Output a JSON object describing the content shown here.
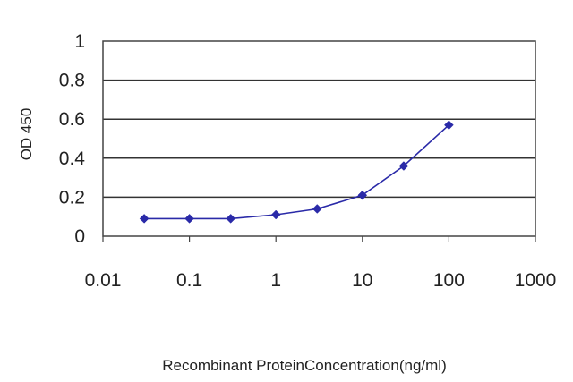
{
  "chart_data": {
    "type": "line",
    "title": "",
    "xlabel": "Recombinant ProteinConcentration(ng/ml)",
    "ylabel": "OD 450",
    "x_scale": "log",
    "xlim": [
      0.01,
      1000
    ],
    "ylim": [
      0,
      1
    ],
    "x_ticks": [
      "0.01",
      "0.1",
      "1",
      "10",
      "100",
      "1000"
    ],
    "y_ticks": [
      "0",
      "0.2",
      "0.4",
      "0.6",
      "0.8",
      "1"
    ],
    "grid": "horizontal",
    "legend": "none",
    "series": [
      {
        "x": [
          0.03,
          0.1,
          0.3,
          1,
          3,
          10,
          30,
          100
        ],
        "y": [
          0.09,
          0.09,
          0.09,
          0.11,
          0.14,
          0.21,
          0.36,
          0.57
        ],
        "color": "#2a2aa8",
        "marker": "diamond"
      }
    ]
  }
}
